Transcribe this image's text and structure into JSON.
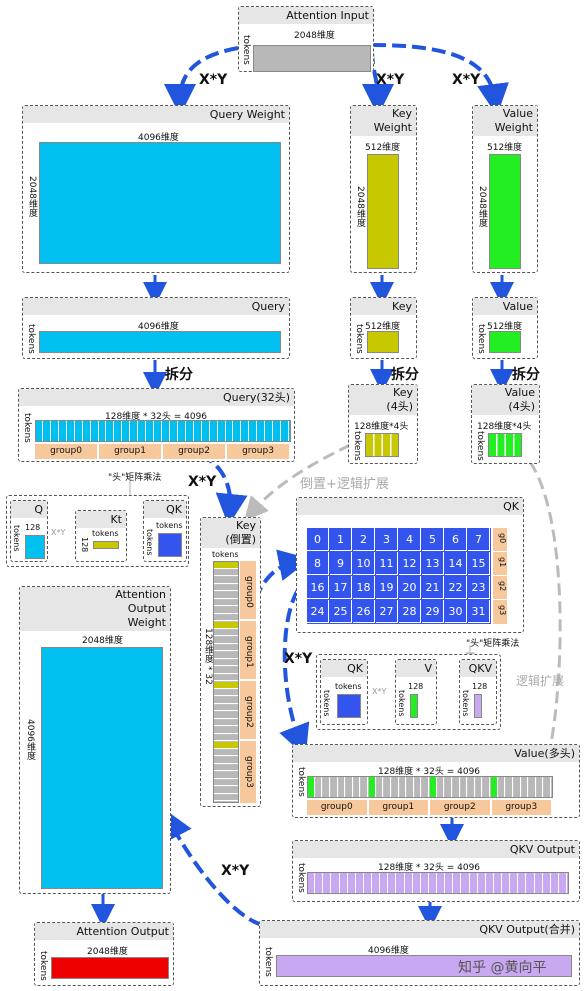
{
  "boxes": {
    "attention_input": {
      "title": "Attention Input",
      "dim": "2048维度",
      "side": "tokens"
    },
    "query_weight": {
      "title": "Query Weight",
      "dim_top": "4096维度",
      "dim_side": "2048维度"
    },
    "key_weight": {
      "title_line1": "Key",
      "title_line2": "Weight",
      "dim_top": "512维度",
      "dim_side": "2048维度"
    },
    "value_weight": {
      "title_line1": "Value",
      "title_line2": "Weight",
      "dim_top": "512维度",
      "dim_side": "2048维度"
    },
    "query": {
      "title": "Query",
      "dim": "4096维度",
      "side": "tokens"
    },
    "key": {
      "title": "Key",
      "dim": "512维度",
      "side": "tokens"
    },
    "value": {
      "title": "Value",
      "dim": "512维度",
      "side": "tokens"
    },
    "query_heads": {
      "title": "Query(32头)",
      "dim": "128维度 * 32头 = 4096",
      "side": "tokens",
      "groups": [
        "group0",
        "group1",
        "group2",
        "group3"
      ]
    },
    "key_heads": {
      "title_line1": "Key",
      "title_line2": "(4头)",
      "dim": "128维度*4头",
      "side": "tokens"
    },
    "value_heads": {
      "title_line1": "Value",
      "title_line2": "(4头)",
      "dim": "128维度*4头",
      "side": "tokens"
    },
    "key_transposed": {
      "title_line1": "Key",
      "title_line2": "(倒置)",
      "tokens": "tokens",
      "side": "128维度 * 32",
      "groups": [
        "group0",
        "group1",
        "group2",
        "group3"
      ]
    },
    "qk": {
      "title": "QK",
      "cells": [
        "0",
        "1",
        "2",
        "3",
        "4",
        "5",
        "6",
        "7",
        "8",
        "9",
        "10",
        "11",
        "12",
        "13",
        "14",
        "15",
        "16",
        "17",
        "18",
        "19",
        "20",
        "21",
        "22",
        "23",
        "24",
        "25",
        "26",
        "27",
        "28",
        "29",
        "30",
        "31"
      ],
      "row_groups": [
        "g0",
        "g1",
        "g2",
        "g3"
      ]
    },
    "mini_left": {
      "q": "Q",
      "kt": "Kt",
      "qk": "QK",
      "num": "128",
      "tokens": "tokens",
      "xy": "X*Y",
      "caption": "\"头\"矩阵乘法"
    },
    "mini_right": {
      "qk": "QK",
      "v": "V",
      "qkv": "QKV",
      "num": "128",
      "tokens": "tokens",
      "xy": "X*Y",
      "caption": "\"头\"矩阵乘法"
    },
    "value_multi": {
      "title": "Value(多头)",
      "dim": "128维度 * 32头 = 4096",
      "side": "tokens",
      "groups": [
        "group0",
        "group1",
        "group2",
        "group3"
      ]
    },
    "qkv_output": {
      "title": "QKV Output",
      "dim": "128维度 * 32头 = 4096",
      "side": "tokens"
    },
    "qkv_merged": {
      "title": "QKV Output(合并)",
      "dim": "4096维度",
      "side": "tokens"
    },
    "attention_output_weight": {
      "title_line1": "Attention",
      "title_line2": "Output",
      "title_line3": "Weight",
      "dim_top": "2048维度",
      "dim_side": "4096维度"
    },
    "attention_output": {
      "title": "Attention Output",
      "dim": "2048维度",
      "side": "tokens"
    }
  },
  "annotations": {
    "xy": "X*Y",
    "split": "拆分",
    "transpose_expand": "倒置+逻辑扩展",
    "logic_expand": "逻辑扩展",
    "watermark": "知乎 @黄向平"
  },
  "colors": {
    "input": "#b8b8b8",
    "query": "#00c0f0",
    "key": "#c8c800",
    "value": "#22ee22",
    "qk": "#3355ee",
    "qkv": "#c8a8f0",
    "output": "#ee0000",
    "group": "#f6c89c",
    "arrow": "#2255dd"
  }
}
